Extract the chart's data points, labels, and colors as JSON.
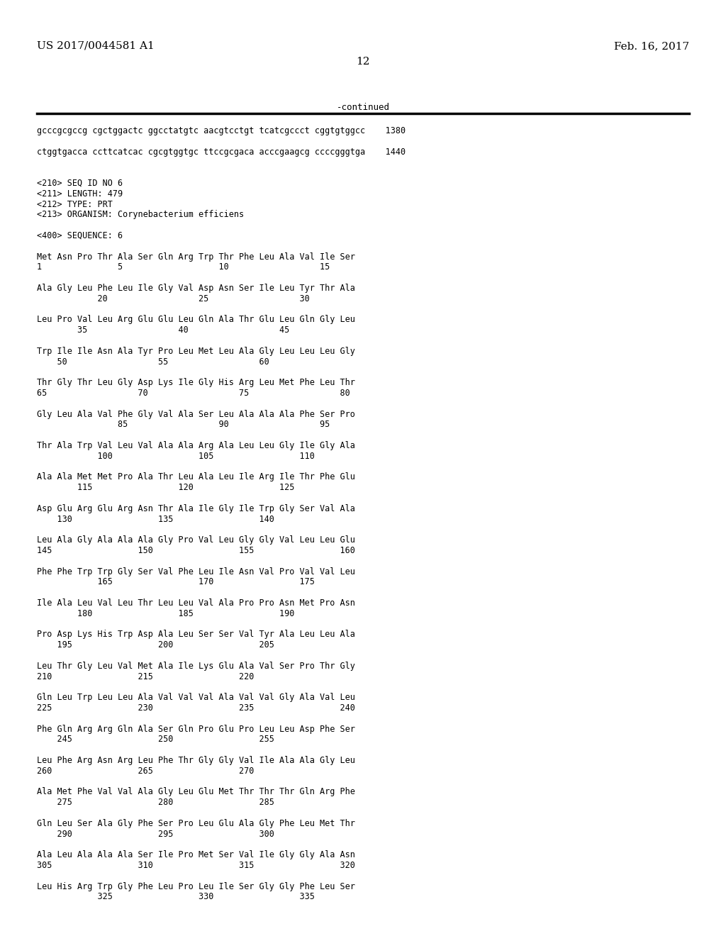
{
  "header_left": "US 2017/0044581 A1",
  "header_right": "Feb. 16, 2017",
  "page_number": "12",
  "continued_label": "-continued",
  "background_color": "#ffffff",
  "text_color": "#000000",
  "font_size": 8.5,
  "mono_font": "DejaVu Sans Mono",
  "header_font_size": 11,
  "lines": [
    "gcccgcgccg cgctggactc ggcctatgtc aacgtcctgt tcatcgccct cggtgtggcc    1380",
    "",
    "ctggtgacca ccttcatcac cgcgtggtgc ttccgcgaca acccgaagcg ccccgggtga    1440",
    "",
    "",
    "<210> SEQ ID NO 6",
    "<211> LENGTH: 479",
    "<212> TYPE: PRT",
    "<213> ORGANISM: Corynebacterium efficiens",
    "",
    "<400> SEQUENCE: 6",
    "",
    "Met Asn Pro Thr Ala Ser Gln Arg Trp Thr Phe Leu Ala Val Ile Ser",
    "1               5                   10                  15",
    "",
    "Ala Gly Leu Phe Leu Ile Gly Val Asp Asn Ser Ile Leu Tyr Thr Ala",
    "            20                  25                  30",
    "",
    "Leu Pro Val Leu Arg Glu Glu Leu Gln Ala Thr Glu Leu Gln Gly Leu",
    "        35                  40                  45",
    "",
    "Trp Ile Ile Asn Ala Tyr Pro Leu Met Leu Ala Gly Leu Leu Leu Gly",
    "    50                  55                  60",
    "",
    "Thr Gly Thr Leu Gly Asp Lys Ile Gly His Arg Leu Met Phe Leu Thr",
    "65                  70                  75                  80",
    "",
    "Gly Leu Ala Val Phe Gly Val Ala Ser Leu Ala Ala Ala Phe Ser Pro",
    "                85                  90                  95",
    "",
    "Thr Ala Trp Val Leu Val Ala Ala Arg Ala Leu Leu Gly Ile Gly Ala",
    "            100                 105                 110",
    "",
    "Ala Ala Met Met Pro Ala Thr Leu Ala Leu Ile Arg Ile Thr Phe Glu",
    "        115                 120                 125",
    "",
    "Asp Glu Arg Glu Arg Asn Thr Ala Ile Gly Ile Trp Gly Ser Val Ala",
    "    130                 135                 140",
    "",
    "Leu Ala Gly Ala Ala Ala Gly Pro Val Leu Gly Gly Val Leu Leu Glu",
    "145                 150                 155                 160",
    "",
    "Phe Phe Trp Trp Gly Ser Val Phe Leu Ile Asn Val Pro Val Val Leu",
    "            165                 170                 175",
    "",
    "Ile Ala Leu Val Leu Thr Leu Leu Val Ala Pro Pro Asn Met Pro Asn",
    "        180                 185                 190",
    "",
    "Pro Asp Lys His Trp Asp Ala Leu Ser Ser Val Tyr Ala Leu Leu Ala",
    "    195                 200                 205",
    "",
    "Leu Thr Gly Leu Val Met Ala Ile Lys Glu Ala Val Ser Pro Thr Gly",
    "210                 215                 220",
    "",
    "Gln Leu Trp Leu Leu Ala Val Val Val Ala Val Val Gly Ala Val Leu",
    "225                 230                 235                 240",
    "",
    "Phe Gln Arg Arg Gln Ala Ser Gln Pro Glu Pro Leu Leu Asp Phe Ser",
    "    245                 250                 255",
    "",
    "Leu Phe Arg Asn Arg Leu Phe Thr Gly Gly Val Ile Ala Ala Gly Leu",
    "260                 265                 270",
    "",
    "Ala Met Phe Val Val Ala Gly Leu Glu Met Thr Thr Thr Gln Arg Phe",
    "    275                 280                 285",
    "",
    "Gln Leu Ser Ala Gly Phe Ser Pro Leu Glu Ala Gly Phe Leu Met Thr",
    "    290                 295                 300",
    "",
    "Ala Leu Ala Ala Ala Ser Ile Pro Met Ser Val Ile Gly Gly Ala Asn",
    "305                 310                 315                 320",
    "",
    "Leu His Arg Trp Gly Phe Leu Pro Leu Ile Ser Gly Gly Phe Leu Ser",
    "            325                 330                 335"
  ]
}
